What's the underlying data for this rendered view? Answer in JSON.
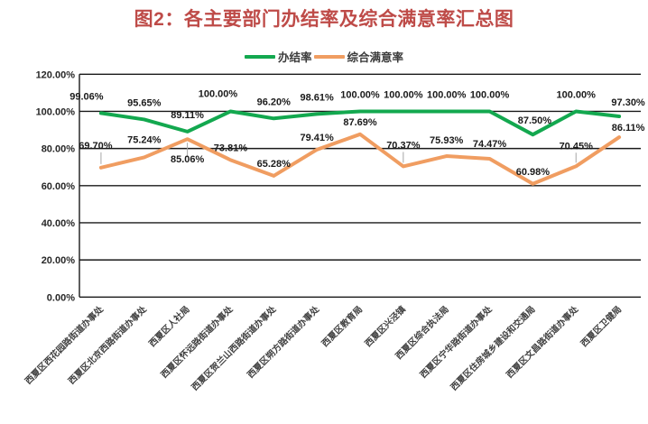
{
  "title": "图2：各主要部门办结率及综合满意率汇总图",
  "legend": [
    {
      "label": "办结率",
      "color": "#13A84F"
    },
    {
      "label": "综合满意率",
      "color": "#F09D61"
    }
  ],
  "chart_data": {
    "type": "line",
    "title": "图2：各主要部门办结率及综合满意率汇总图",
    "categories": [
      "西夏区西花园路街道办事处",
      "西夏区北京西路街道办事处",
      "西夏区人社局",
      "西夏区怀远路街道办事处",
      "西夏区贺兰山西路街道办事处",
      "西夏区朔方路街道办事处",
      "西夏区教育局",
      "西夏区兴泾镇",
      "西夏区综合执法局",
      "西夏区宁华路街道办事处",
      "西夏区住房城乡建设和交通局",
      "西夏区文昌路街道办事处",
      "西夏区卫健局"
    ],
    "series": [
      {
        "name": "办结率",
        "color": "#13A84F",
        "values": [
          99.06,
          95.65,
          89.11,
          100.0,
          96.2,
          98.61,
          100.0,
          100.0,
          100.0,
          100.0,
          87.5,
          100.0,
          97.3
        ]
      },
      {
        "name": "综合满意率",
        "color": "#F09D61",
        "values": [
          69.7,
          75.24,
          85.06,
          73.81,
          65.28,
          79.41,
          87.69,
          70.37,
          75.93,
          74.47,
          60.98,
          70.45,
          86.11
        ]
      }
    ],
    "ylim": [
      0,
      120
    ],
    "ytick_step": 20,
    "ytick_labels": [
      "0.00%",
      "20.00%",
      "40.00%",
      "60.00%",
      "80.00%",
      "100.00%",
      "120.00%"
    ],
    "value_label_format": "0.00%",
    "grid": "horizontal",
    "legend_position": "top",
    "data_labels_visible": true
  },
  "colors": {
    "title": "#BE4B48",
    "grid": "#1a1a1a",
    "axis_line": "#1a1a1a",
    "ytick_text": "#262626",
    "category_text": "#3f3f3f",
    "data_label_text": "#1a1a1a",
    "leader_line": "#a6a6a6",
    "background": "#ffffff"
  }
}
